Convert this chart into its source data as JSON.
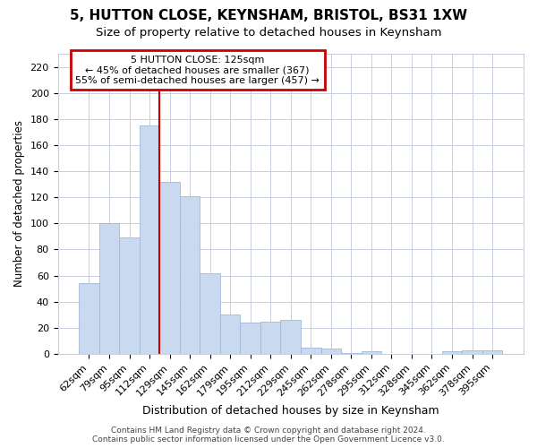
{
  "title1": "5, HUTTON CLOSE, KEYNSHAM, BRISTOL, BS31 1XW",
  "title2": "Size of property relative to detached houses in Keynsham",
  "xlabel": "Distribution of detached houses by size in Keynsham",
  "ylabel": "Number of detached properties",
  "categories": [
    "62sqm",
    "79sqm",
    "95sqm",
    "112sqm",
    "129sqm",
    "145sqm",
    "162sqm",
    "179sqm",
    "195sqm",
    "212sqm",
    "229sqm",
    "245sqm",
    "262sqm",
    "278sqm",
    "295sqm",
    "312sqm",
    "328sqm",
    "345sqm",
    "362sqm",
    "378sqm",
    "395sqm"
  ],
  "values": [
    54,
    100,
    89,
    175,
    132,
    121,
    62,
    30,
    24,
    25,
    26,
    5,
    4,
    1,
    2,
    0,
    0,
    0,
    2,
    3,
    3
  ],
  "bar_color": "#c9d9f0",
  "bar_edge_color": "#a0b8d8",
  "annotation_title": "5 HUTTON CLOSE: 125sqm",
  "annotation_line1": "← 45% of detached houses are smaller (367)",
  "annotation_line2": "55% of semi-detached houses are larger (457) →",
  "annotation_box_color": "#ffffff",
  "annotation_box_edge": "#cc0000",
  "vline_color": "#cc0000",
  "vline_pos": 3.5,
  "ylim": [
    0,
    230
  ],
  "yticks": [
    0,
    20,
    40,
    60,
    80,
    100,
    120,
    140,
    160,
    180,
    200,
    220
  ],
  "background_color": "#ffffff",
  "grid_color": "#c8d0e0",
  "footer1": "Contains HM Land Registry data © Crown copyright and database right 2024.",
  "footer2": "Contains public sector information licensed under the Open Government Licence v3.0."
}
